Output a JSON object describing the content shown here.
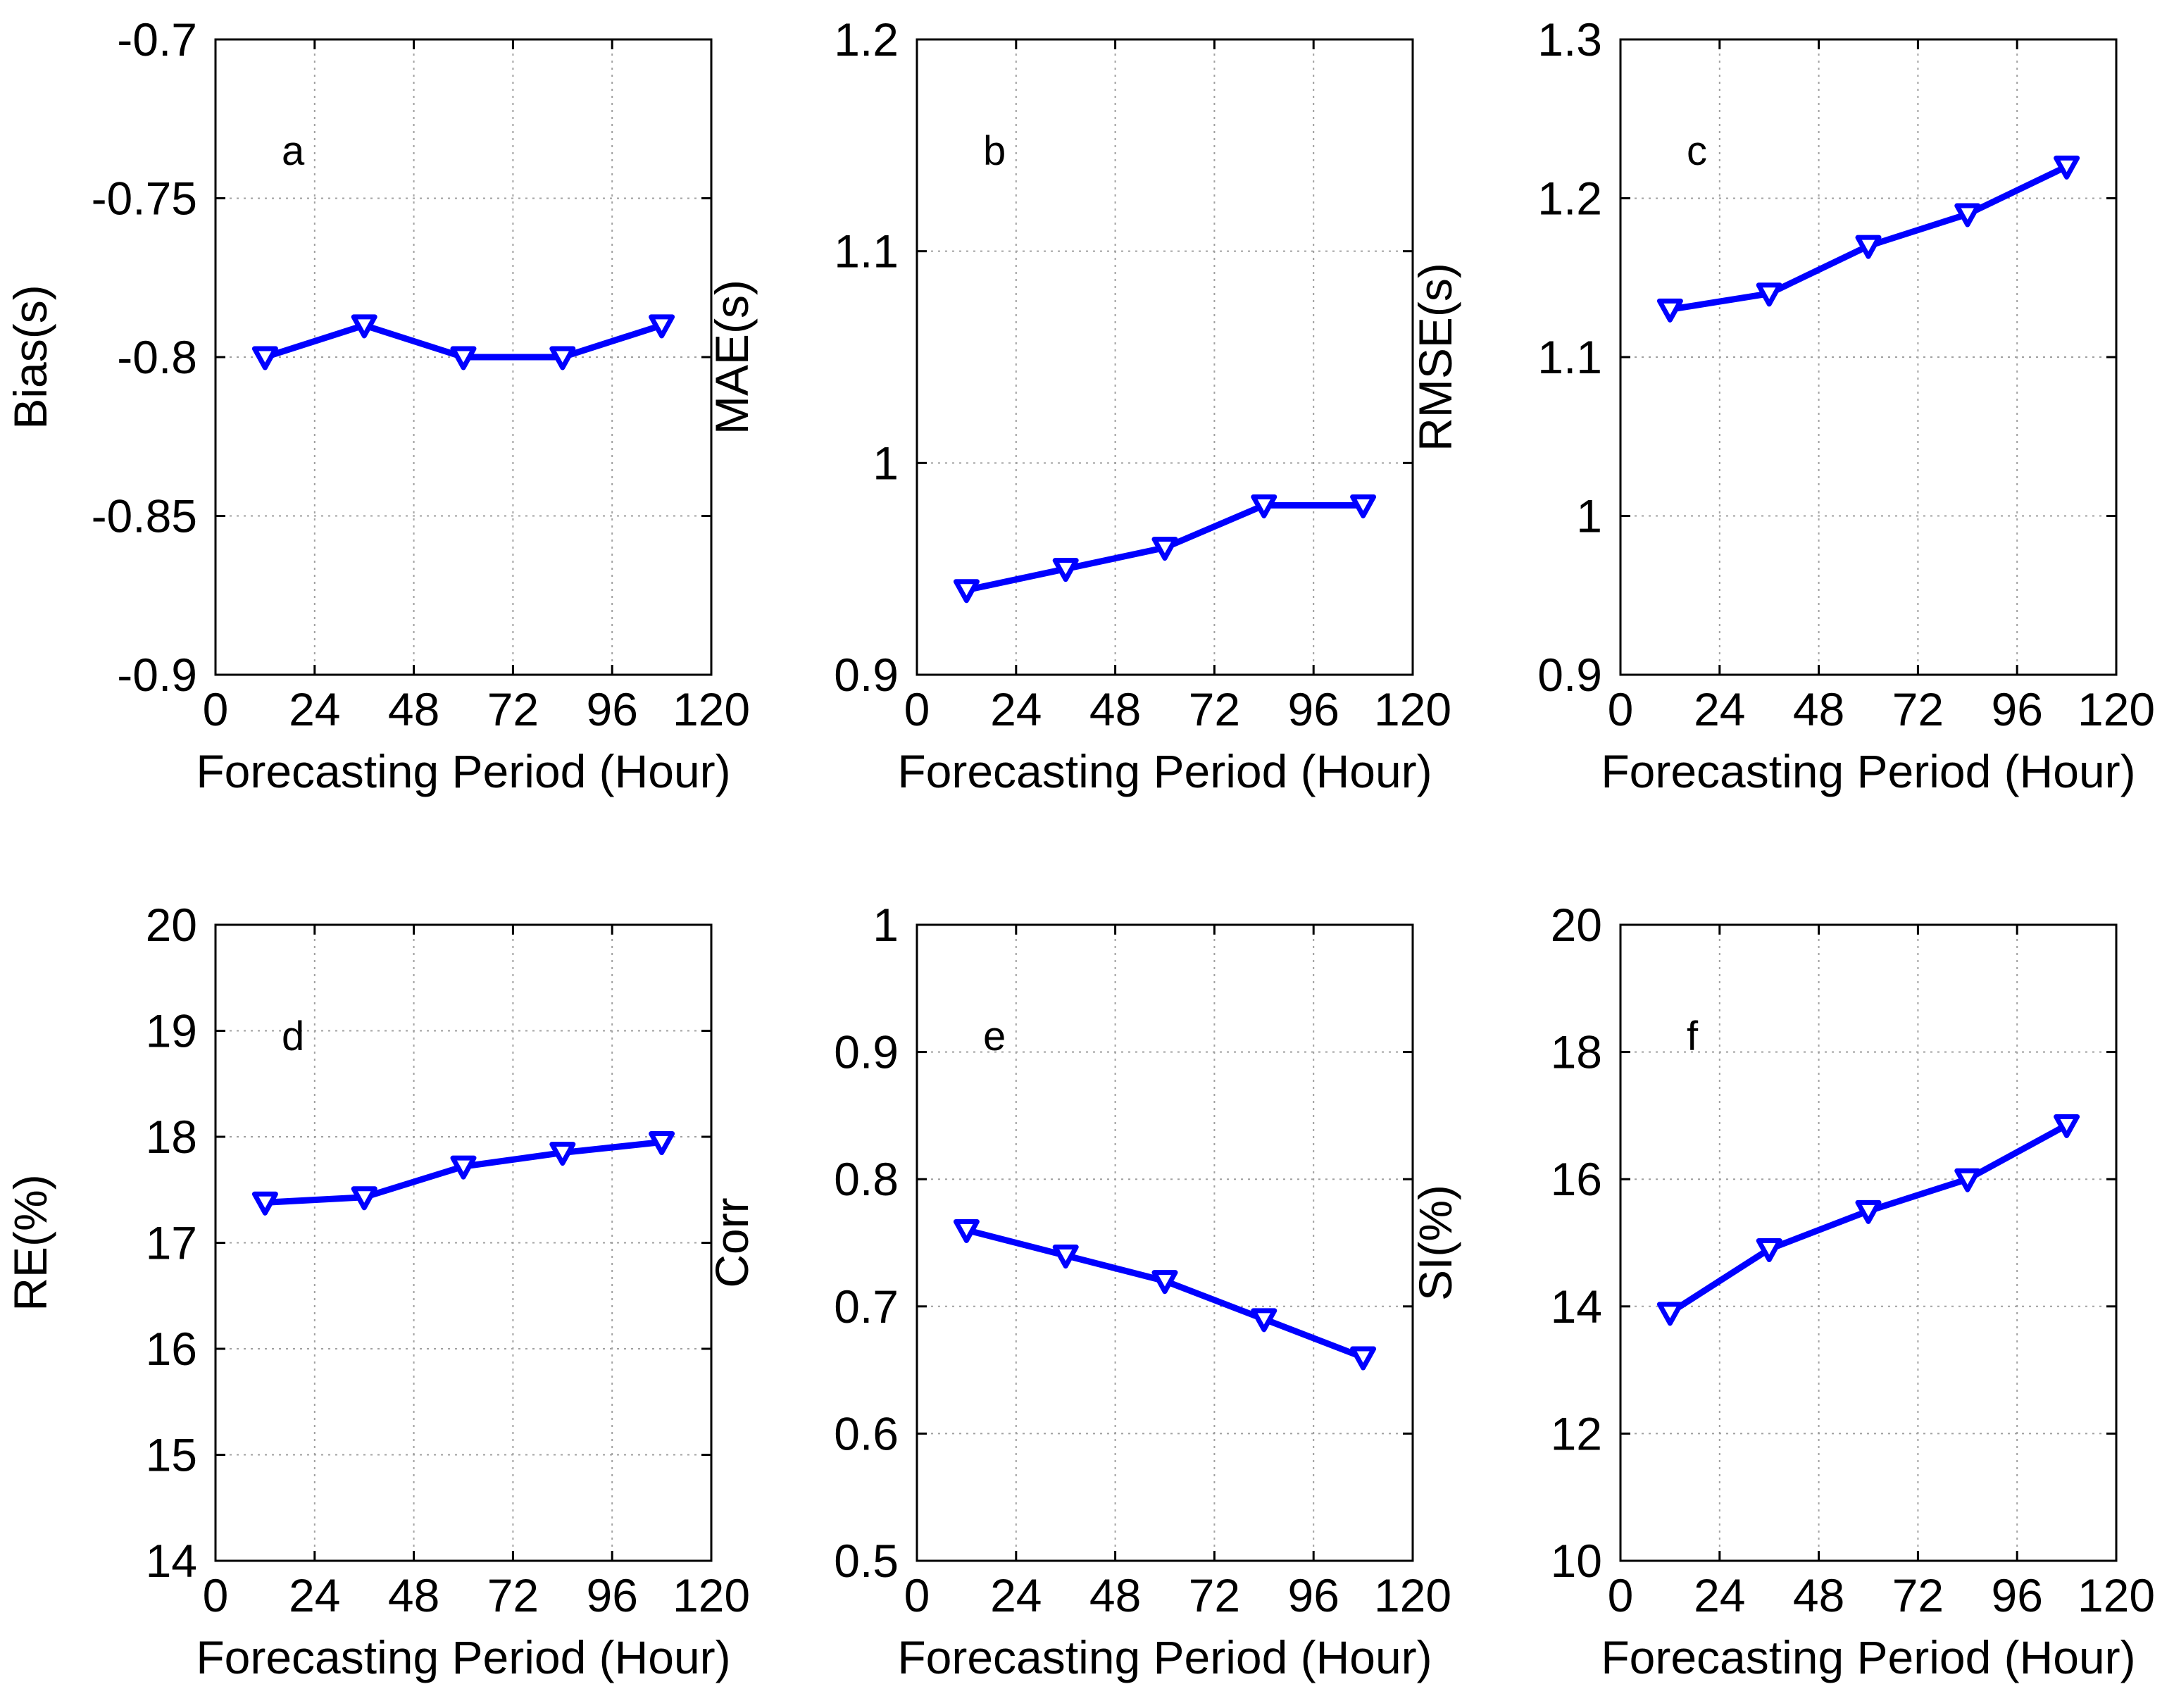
{
  "chart_data": [
    {
      "type": "line",
      "panel_letter": "a",
      "xlabel": "Forecasting Period (Hour)",
      "ylabel": "Bias(s)",
      "x": [
        12,
        36,
        60,
        84,
        108
      ],
      "values": [
        -0.8,
        -0.79,
        -0.8,
        -0.8,
        -0.79
      ],
      "xlim": [
        0,
        120
      ],
      "ylim": [
        -0.9,
        -0.7
      ],
      "xticks": [
        0,
        24,
        48,
        72,
        96,
        120
      ],
      "xtick_labels": [
        "0",
        "24",
        "48",
        "72",
        "96",
        "120"
      ],
      "yticks": [
        -0.9,
        -0.85,
        -0.8,
        -0.75,
        -0.7
      ],
      "ytick_labels": [
        "-0.9",
        "-0.85",
        "-0.8",
        "-0.75",
        "-0.7"
      ],
      "grid": true,
      "color": "#0000ff",
      "marker": "triangle-down"
    },
    {
      "type": "line",
      "panel_letter": "b",
      "xlabel": "Forecasting Period (Hour)",
      "ylabel": "MAE(s)",
      "x": [
        12,
        36,
        60,
        84,
        108
      ],
      "values": [
        0.94,
        0.95,
        0.96,
        0.98,
        0.98
      ],
      "xlim": [
        0,
        120
      ],
      "ylim": [
        0.9,
        1.2
      ],
      "xticks": [
        0,
        24,
        48,
        72,
        96,
        120
      ],
      "xtick_labels": [
        "0",
        "24",
        "48",
        "72",
        "96",
        "120"
      ],
      "yticks": [
        0.9,
        1.0,
        1.1,
        1.2
      ],
      "ytick_labels": [
        "0.9",
        "1",
        "1.1",
        "1.2"
      ],
      "grid": true,
      "color": "#0000ff",
      "marker": "triangle-down"
    },
    {
      "type": "line",
      "panel_letter": "c",
      "xlabel": "Forecasting Period (Hour)",
      "ylabel": "RMSE(s)",
      "x": [
        12,
        36,
        60,
        84,
        108
      ],
      "values": [
        1.13,
        1.14,
        1.17,
        1.19,
        1.22
      ],
      "xlim": [
        0,
        120
      ],
      "ylim": [
        0.9,
        1.3
      ],
      "xticks": [
        0,
        24,
        48,
        72,
        96,
        120
      ],
      "xtick_labels": [
        "0",
        "24",
        "48",
        "72",
        "96",
        "120"
      ],
      "yticks": [
        0.9,
        1.0,
        1.1,
        1.2,
        1.3
      ],
      "ytick_labels": [
        "0.9",
        "1",
        "1.1",
        "1.2",
        "1.3"
      ],
      "grid": true,
      "color": "#0000ff",
      "marker": "triangle-down"
    },
    {
      "type": "line",
      "panel_letter": "d",
      "xlabel": "Forecasting Period (Hour)",
      "ylabel": "RE(%)",
      "x": [
        12,
        36,
        60,
        84,
        108
      ],
      "values": [
        17.38,
        17.43,
        17.72,
        17.85,
        17.95
      ],
      "xlim": [
        0,
        120
      ],
      "ylim": [
        14,
        20
      ],
      "xticks": [
        0,
        24,
        48,
        72,
        96,
        120
      ],
      "xtick_labels": [
        "0",
        "24",
        "48",
        "72",
        "96",
        "120"
      ],
      "yticks": [
        14,
        15,
        16,
        17,
        18,
        19,
        20
      ],
      "ytick_labels": [
        "14",
        "15",
        "16",
        "17",
        "18",
        "19",
        "20"
      ],
      "grid": true,
      "color": "#0000ff",
      "marker": "triangle-down"
    },
    {
      "type": "line",
      "panel_letter": "e",
      "xlabel": "Forecasting Period (Hour)",
      "ylabel": "Corr",
      "x": [
        12,
        36,
        60,
        84,
        108
      ],
      "values": [
        0.76,
        0.74,
        0.72,
        0.69,
        0.66
      ],
      "xlim": [
        0,
        120
      ],
      "ylim": [
        0.5,
        1.0
      ],
      "xticks": [
        0,
        24,
        48,
        72,
        96,
        120
      ],
      "xtick_labels": [
        "0",
        "24",
        "48",
        "72",
        "96",
        "120"
      ],
      "yticks": [
        0.5,
        0.6,
        0.7,
        0.8,
        0.9,
        1.0
      ],
      "ytick_labels": [
        "0.5",
        "0.6",
        "0.7",
        "0.8",
        "0.9",
        "1"
      ],
      "grid": true,
      "color": "#0000ff",
      "marker": "triangle-down"
    },
    {
      "type": "line",
      "panel_letter": "f",
      "xlabel": "Forecasting Period (Hour)",
      "ylabel": "SI(%)",
      "x": [
        12,
        36,
        60,
        84,
        108
      ],
      "values": [
        13.9,
        14.9,
        15.5,
        16.0,
        16.85
      ],
      "xlim": [
        0,
        120
      ],
      "ylim": [
        10,
        20
      ],
      "xticks": [
        0,
        24,
        48,
        72,
        96,
        120
      ],
      "xtick_labels": [
        "0",
        "24",
        "48",
        "72",
        "96",
        "120"
      ],
      "yticks": [
        10,
        12,
        14,
        16,
        18,
        20
      ],
      "ytick_labels": [
        "10",
        "12",
        "14",
        "16",
        "18",
        "20"
      ],
      "grid": true,
      "color": "#0000ff",
      "marker": "triangle-down"
    }
  ]
}
